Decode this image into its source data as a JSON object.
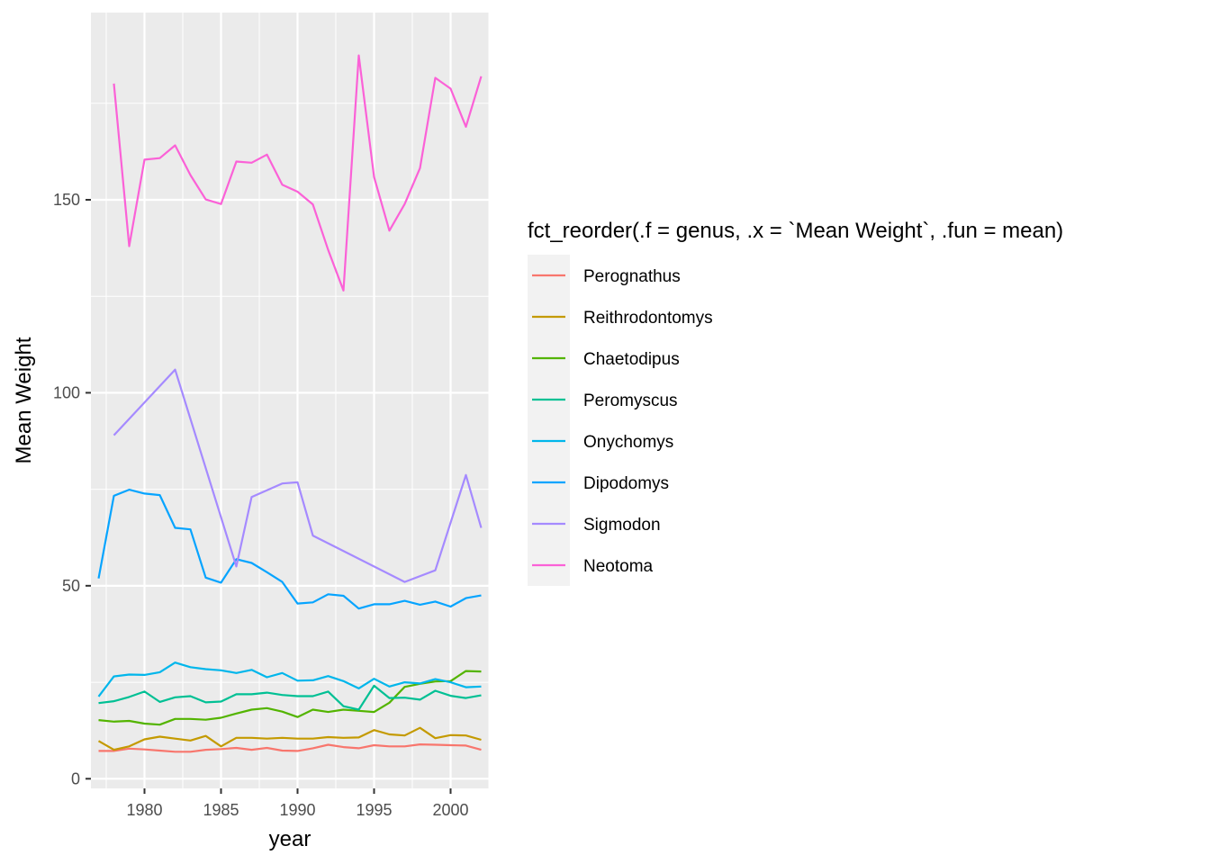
{
  "chart_data": {
    "type": "line",
    "xlabel": "year",
    "ylabel": "Mean Weight",
    "xlim": [
      1976.5,
      2002.5
    ],
    "ylim": [
      -2.5,
      198.5
    ],
    "x_ticks": [
      1980,
      1985,
      1990,
      1995,
      2000
    ],
    "y_ticks": [
      0,
      50,
      100,
      150
    ],
    "grid": true,
    "legend": {
      "title": "fct_reorder(.f = genus, .x = `Mean Weight`, .fun = mean)",
      "position": "right"
    },
    "series": [
      {
        "name": "Perognathus",
        "color": "#F8766D",
        "x": [
          1977,
          1978,
          1979,
          1980,
          1981,
          1982,
          1983,
          1984,
          1985,
          1986,
          1987,
          1988,
          1989,
          1990,
          1991,
          1992,
          1993,
          1994,
          1995,
          1996,
          1997,
          1998,
          1999,
          2000,
          2001,
          2002
        ],
        "y": [
          7.2,
          7.2,
          7.8,
          7.6,
          7.3,
          7.0,
          7.0,
          7.5,
          7.7,
          8.0,
          7.5,
          8.0,
          7.3,
          7.2,
          7.9,
          8.8,
          8.2,
          7.9,
          8.7,
          8.4,
          8.4,
          8.9,
          8.8,
          8.7,
          8.6,
          7.5
        ]
      },
      {
        "name": "Reithrodontomys",
        "color": "#C49A00",
        "x": [
          1977,
          1978,
          1979,
          1980,
          1981,
          1982,
          1983,
          1984,
          1985,
          1986,
          1987,
          1988,
          1989,
          1990,
          1991,
          1992,
          1993,
          1994,
          1995,
          1996,
          1997,
          1998,
          1999,
          2000,
          2001,
          2002
        ],
        "y": [
          9.8,
          7.5,
          8.4,
          10.2,
          10.9,
          10.4,
          9.9,
          11.1,
          8.4,
          10.6,
          10.6,
          10.4,
          10.6,
          10.4,
          10.4,
          10.8,
          10.6,
          10.7,
          12.6,
          11.5,
          11.2,
          13.2,
          10.5,
          11.3,
          11.2,
          10.1
        ]
      },
      {
        "name": "Chaetodipus",
        "color": "#53B400",
        "x": [
          1977,
          1978,
          1979,
          1980,
          1981,
          1982,
          1983,
          1984,
          1985,
          1986,
          1987,
          1988,
          1989,
          1990,
          1991,
          1992,
          1993,
          1994,
          1995,
          1996,
          1997,
          1998,
          1999,
          2000,
          2001,
          2002
        ],
        "y": [
          15.2,
          14.8,
          15.0,
          14.3,
          14.0,
          15.5,
          15.5,
          15.3,
          15.8,
          16.9,
          17.9,
          18.3,
          17.4,
          16.0,
          17.9,
          17.3,
          17.9,
          17.6,
          17.3,
          19.7,
          23.8,
          24.6,
          25.2,
          25.3,
          27.9,
          27.8
        ]
      },
      {
        "name": "Peromyscus",
        "color": "#00C094",
        "x": [
          1977,
          1978,
          1979,
          1980,
          1981,
          1982,
          1983,
          1984,
          1985,
          1986,
          1987,
          1988,
          1989,
          1990,
          1991,
          1992,
          1993,
          1994,
          1995,
          1996,
          1997,
          1998,
          1999,
          2000,
          2001,
          2002
        ],
        "y": [
          19.6,
          20.1,
          21.2,
          22.6,
          19.9,
          21.1,
          21.4,
          19.8,
          20.0,
          21.9,
          21.9,
          22.3,
          21.7,
          21.4,
          21.4,
          22.6,
          18.8,
          17.9,
          24.1,
          20.9,
          21.0,
          20.5,
          22.8,
          21.5,
          20.9,
          21.6
        ]
      },
      {
        "name": "Onychomys",
        "color": "#00B6EB",
        "x": [
          1977,
          1978,
          1979,
          1980,
          1981,
          1982,
          1983,
          1984,
          1985,
          1986,
          1987,
          1988,
          1989,
          1990,
          1991,
          1992,
          1993,
          1994,
          1995,
          1996,
          1997,
          1998,
          1999,
          2000,
          2001,
          2002
        ],
        "y": [
          21.3,
          26.5,
          27.0,
          26.9,
          27.6,
          30.1,
          28.9,
          28.4,
          28.1,
          27.4,
          28.2,
          26.3,
          27.4,
          25.4,
          25.5,
          26.6,
          25.3,
          23.4,
          25.9,
          23.9,
          25.0,
          24.7,
          25.8,
          25.0,
          23.7,
          23.9
        ]
      },
      {
        "name": "Dipodomys",
        "color": "#06A4FF",
        "x": [
          1977,
          1978,
          1979,
          1980,
          1981,
          1982,
          1983,
          1984,
          1985,
          1986,
          1987,
          1988,
          1989,
          1990,
          1991,
          1992,
          1993,
          1994,
          1995,
          1996,
          1997,
          1998,
          1999,
          2000,
          2001,
          2002
        ],
        "y": [
          51.9,
          73.3,
          74.9,
          73.9,
          73.5,
          65.0,
          64.6,
          52.1,
          50.8,
          56.9,
          55.9,
          53.5,
          51.0,
          45.4,
          45.7,
          47.8,
          47.4,
          44.1,
          45.2,
          45.2,
          46.1,
          45.1,
          45.9,
          44.6,
          46.8,
          47.5
        ]
      },
      {
        "name": "Sigmodon",
        "color": "#A58AFF",
        "x": [
          1978,
          1982,
          1986,
          1987,
          1989,
          1990,
          1991,
          1997,
          1999,
          2001,
          2002
        ],
        "y": [
          89.0,
          106.0,
          55.0,
          73.0,
          76.5,
          76.8,
          63.0,
          51.0,
          54.0,
          78.7,
          65.0
        ]
      },
      {
        "name": "Neotoma",
        "color": "#FB61D7",
        "x": [
          1978,
          1979,
          1980,
          1981,
          1982,
          1983,
          1984,
          1985,
          1986,
          1987,
          1988,
          1989,
          1990,
          1991,
          1992,
          1993,
          1994,
          1995,
          1996,
          1997,
          1998,
          1999,
          2000,
          2001,
          2002
        ],
        "y": [
          180.1,
          138.0,
          160.4,
          160.8,
          164.1,
          156.4,
          150.1,
          148.9,
          159.9,
          159.6,
          161.7,
          153.9,
          152.1,
          148.8,
          137.0,
          126.5,
          187.4,
          155.9,
          142.0,
          148.9,
          158.2,
          181.6,
          178.8,
          168.9,
          182.0
        ]
      }
    ]
  }
}
